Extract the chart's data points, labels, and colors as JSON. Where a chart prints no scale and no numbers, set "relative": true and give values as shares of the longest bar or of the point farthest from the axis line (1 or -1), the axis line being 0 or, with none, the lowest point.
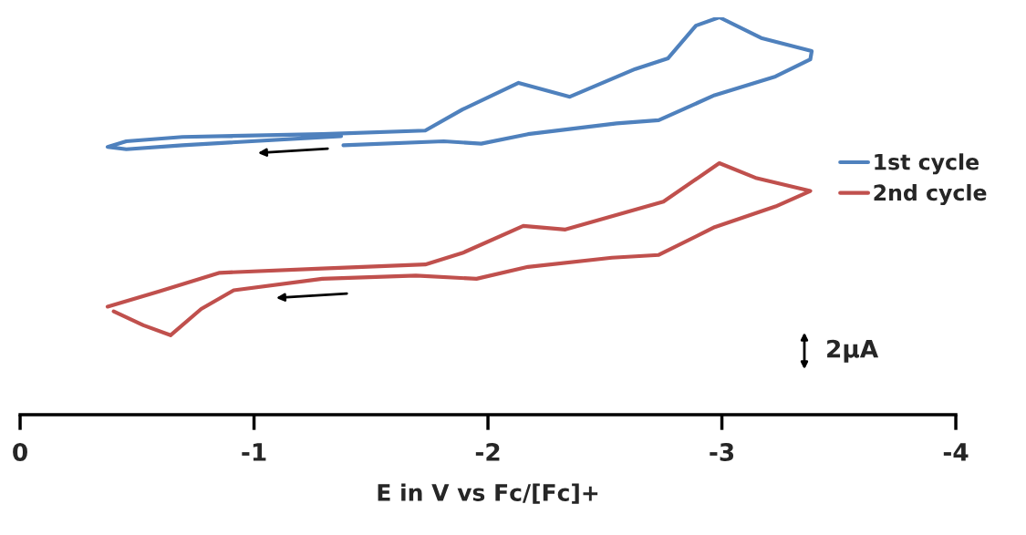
{
  "chart_data": {
    "type": "line",
    "xlabel": "E in V vs Fc/[Fc]+",
    "relative": true,
    "xlim": [
      0,
      -4
    ],
    "xticks": [
      0,
      -1,
      -2,
      -3,
      -4
    ],
    "legend": "right",
    "grid": false,
    "marker": "none",
    "line_style": "solid",
    "annotations": [
      "2μA"
    ],
    "series": [
      {
        "name": "1st cycle",
        "color": "#4f81bd",
        "x": [
          -1.382,
          -1.811,
          -1.971,
          -2.171,
          -2.55,
          -2.73,
          -2.969,
          -3.229,
          -3.378,
          -3.384,
          -3.168,
          -2.989,
          -2.889,
          -2.77,
          -2.63,
          -2.35,
          -2.131,
          -1.891,
          -1.732,
          -1.292,
          -0.694,
          -0.454,
          -0.374,
          -0.454,
          -0.694,
          -1.372
        ],
        "values": [
          0.678,
          0.688,
          0.682,
          0.706,
          0.733,
          0.741,
          0.804,
          0.851,
          0.894,
          0.915,
          0.948,
          1.0,
          0.979,
          0.897,
          0.87,
          0.8,
          0.835,
          0.768,
          0.715,
          0.706,
          0.699,
          0.688,
          0.674,
          0.668,
          0.678,
          0.701
        ]
      },
      {
        "name": "2nd cycle",
        "color": "#c0504d",
        "x": [
          -0.374,
          -0.594,
          -0.853,
          -1.292,
          -1.732,
          -1.891,
          -2.151,
          -2.331,
          -2.75,
          -2.989,
          -3.149,
          -3.378,
          -3.229,
          -2.969,
          -2.73,
          -2.53,
          -2.171,
          -1.951,
          -1.692,
          -1.292,
          -0.913,
          -0.774,
          -0.643,
          -0.527,
          -0.4
        ],
        "values": [
          0.272,
          0.31,
          0.357,
          0.368,
          0.378,
          0.407,
          0.475,
          0.466,
          0.536,
          0.633,
          0.595,
          0.563,
          0.524,
          0.472,
          0.402,
          0.395,
          0.372,
          0.342,
          0.35,
          0.342,
          0.313,
          0.266,
          0.2,
          0.225,
          0.26
        ]
      }
    ]
  }
}
